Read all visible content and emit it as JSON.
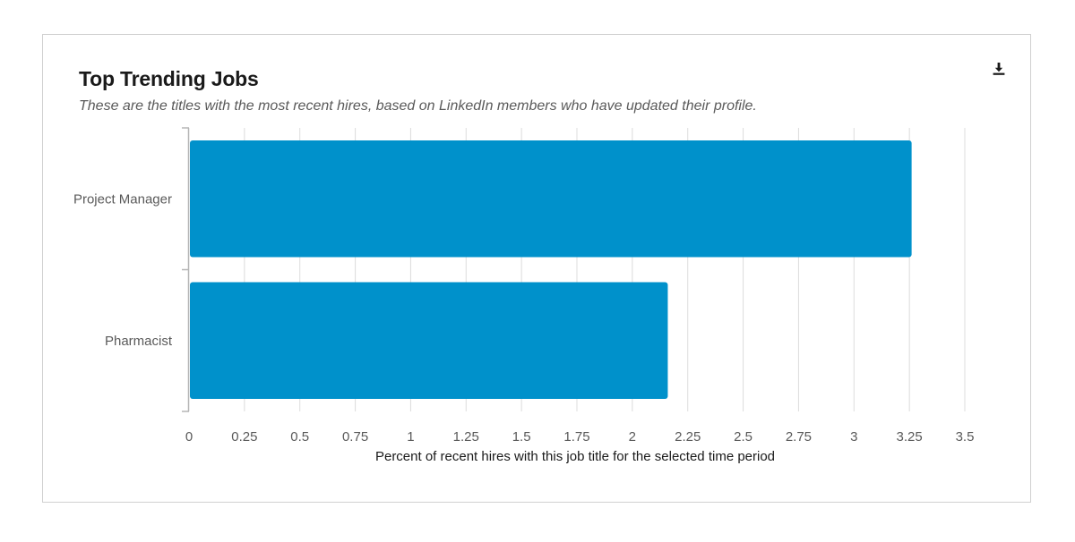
{
  "card": {
    "title": "Top Trending Jobs",
    "subtitle": "These are the titles with the most recent hires, based on LinkedIn members who have updated their profile.",
    "download_icon": "download-icon"
  },
  "colors": {
    "bar": "#0091cb",
    "grid": "#dcdcdc",
    "axis": "#b5b5b5"
  },
  "chart_data": {
    "type": "bar",
    "orientation": "horizontal",
    "title": "Top Trending Jobs",
    "categories": [
      "Project Manager",
      "Pharmacist"
    ],
    "values": [
      3.26,
      2.16
    ],
    "xlabel": "Percent of recent hires with this job title for the selected time period",
    "ylabel": "",
    "xlim": [
      0,
      3.5
    ],
    "ticks": [
      "0",
      "0.25",
      "0.5",
      "0.75",
      "1",
      "1.25",
      "1.5",
      "1.75",
      "2",
      "2.25",
      "2.5",
      "2.75",
      "3",
      "3.25",
      "3.5"
    ],
    "grid": true,
    "legend": "none"
  }
}
